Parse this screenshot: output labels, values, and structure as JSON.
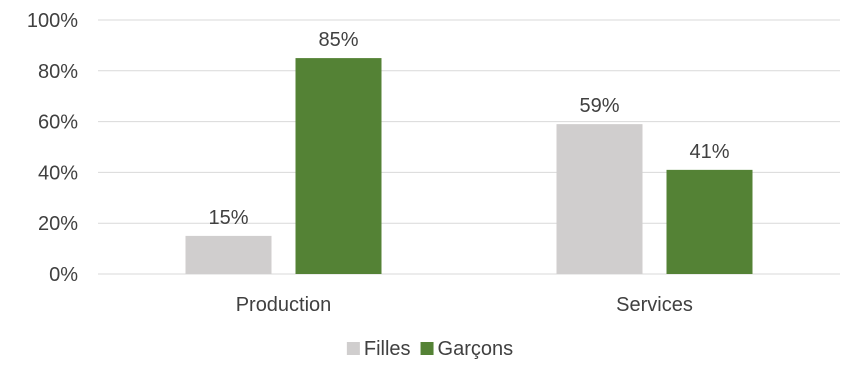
{
  "chart_data": {
    "type": "bar",
    "title": "",
    "xlabel": "",
    "ylabel": "",
    "categories": [
      "Production",
      "Services"
    ],
    "series": [
      {
        "name": "Filles",
        "color": "#d0cece",
        "values": [
          15,
          59
        ]
      },
      {
        "name": "Garçons",
        "color": "#548235",
        "values": [
          85,
          41
        ]
      }
    ],
    "ylim": [
      0,
      100
    ],
    "yticks": [
      0,
      20,
      40,
      60,
      80,
      100
    ],
    "ytick_labels": [
      "0%",
      "20%",
      "40%",
      "60%",
      "80%",
      "100%"
    ],
    "data_labels": [
      [
        "15%",
        "59%"
      ],
      [
        "85%",
        "41%"
      ]
    ],
    "grid": true,
    "legend_position": "bottom"
  }
}
